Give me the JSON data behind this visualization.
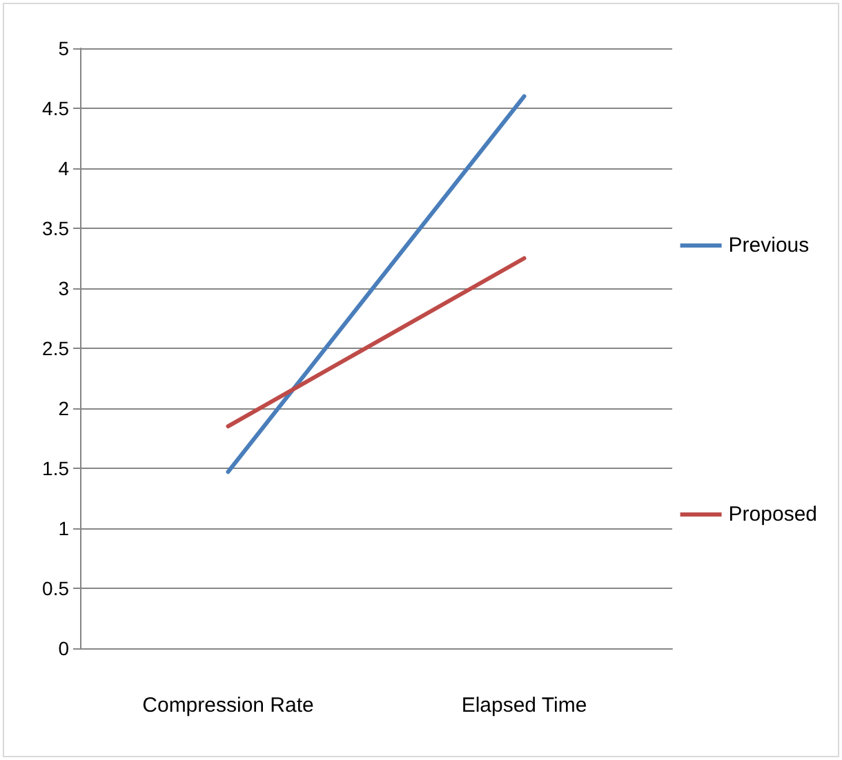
{
  "chart_data": {
    "type": "line",
    "categories": [
      "Compression Rate",
      "Elapsed Time"
    ],
    "series": [
      {
        "name": "Previous",
        "color": "#4a7ebb",
        "values": [
          1.47,
          4.6
        ]
      },
      {
        "name": "Proposed",
        "color": "#be4b48",
        "values": [
          1.85,
          3.25
        ]
      }
    ],
    "ylim": [
      0,
      5
    ],
    "yticks": [
      0,
      0.5,
      1,
      1.5,
      2,
      2.5,
      3,
      3.5,
      4,
      4.5,
      5
    ],
    "grid": "y",
    "legend": "right",
    "marker": "none",
    "line_style": "solid"
  }
}
